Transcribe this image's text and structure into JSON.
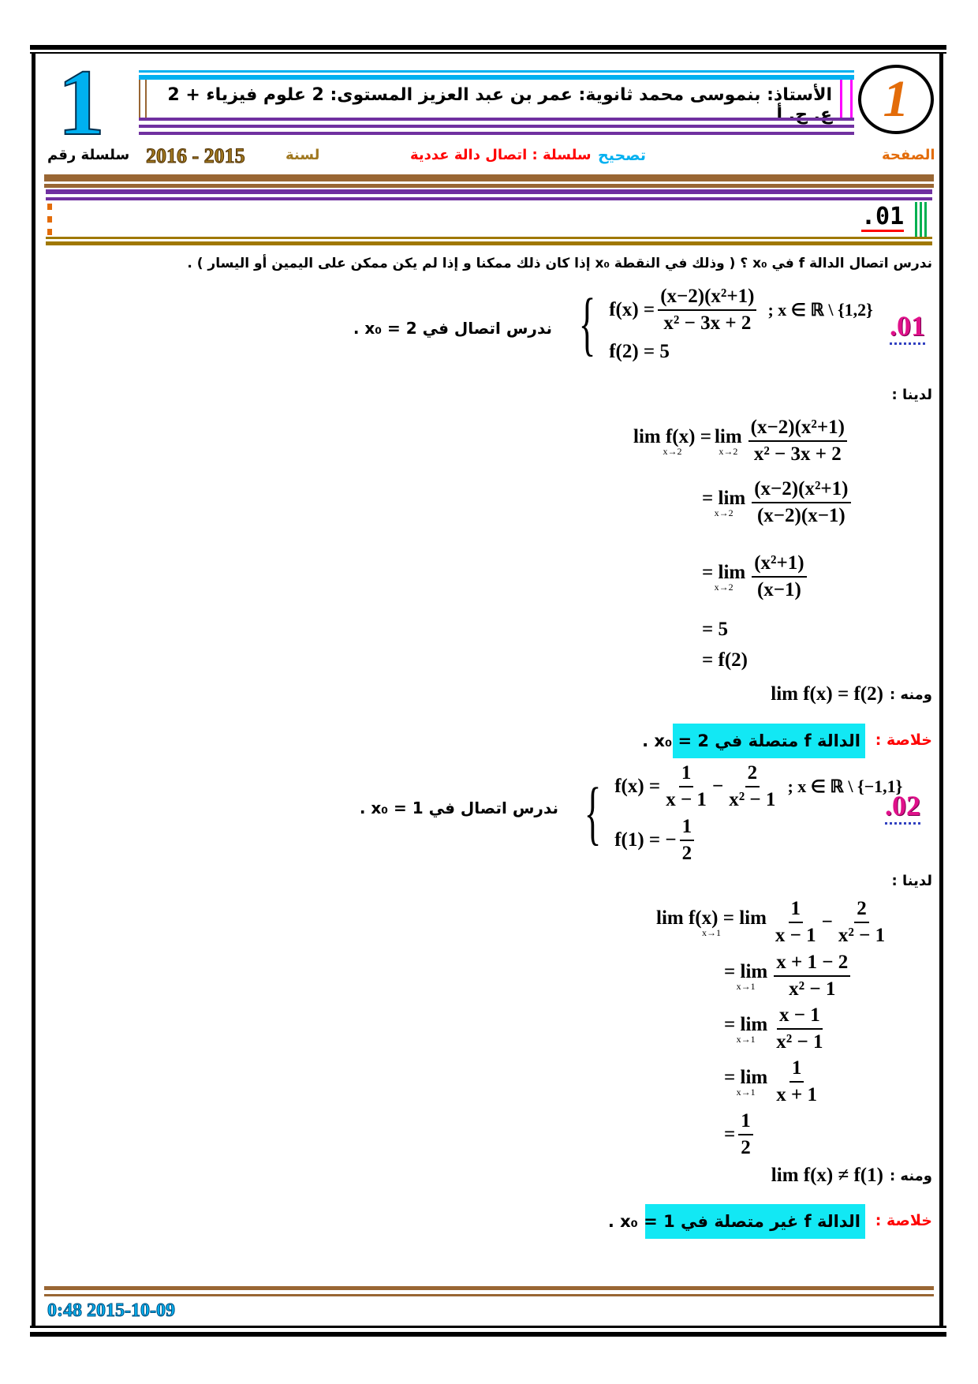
{
  "header": {
    "teacher_line": "الأستاذ: بنموسى محمد ثانوية: عمر بن عبد العزيز المستوى: 2 علوم فيزياء + 2 ع. ح. أ",
    "series_number": "1",
    "series_label": "سلسلة رقم",
    "year": "2016 - 2015",
    "year_label": "لسنة",
    "correction": "تصحيح",
    "series_title": "سلسلة : اتصال دالة عددية",
    "page_label": "الصفحة",
    "logo_glyph": "1",
    "section": ".01"
  },
  "intro": "ندرس اتصال الدالة f في x₀ ؟ ( وذلك في النقطة x₀ إذا كان ذلك ممكنا و إذا لم يكن ممكن على اليمين أو اليسار ) .",
  "ex1": {
    "num": ".01",
    "f_lhs": "f(x) =",
    "f_num": "(x−2)(x²+1)",
    "f_den": "x² − 3x + 2",
    "domain": "; x ∈ ℝ \\ {1,2}",
    "f_val": "f(2) = 5",
    "task": "ندرس اتصال في 2 = x₀ .",
    "we_have": "لدينا :",
    "s1_lhs": "lim f(x) =",
    "lim_sub": "x→2",
    "s1_lim": "lim",
    "s1_num": "(x−2)(x²+1)",
    "s1_den": "x² − 3x + 2",
    "s2_lim": "= lim",
    "s2_num": "(x−2)(x²+1)",
    "s2_den": "(x−2)(x−1)",
    "s3_lim": "= lim",
    "s3_num": "(x²+1)",
    "s3_den": "(x−1)",
    "s4": "= 5",
    "s5": "= f(2)",
    "hence": "ومنه :",
    "hence_expr": "lim f(x) = f(2)",
    "concl_label": "خلاصة :",
    "concl_text": "الدالة f متصلة في 2 = x₀ ."
  },
  "ex2": {
    "num": ".02",
    "f_lhs": "f(x) =",
    "a_num": "1",
    "a_den": "x − 1",
    "b_num": "2",
    "b_den": "x² − 1",
    "domain": "; x ∈ ℝ \\ {−1,1}",
    "f_val_lhs": "f(1) = −",
    "f_val_num": "1",
    "f_val_den": "2",
    "task": "ندرس اتصال في 1 = x₀ .",
    "we_have": "لدينا :",
    "lim_sub": "x→1",
    "s1_lhs": "lim f(x) = lim",
    "s1_an": "1",
    "s1_ad": "x − 1",
    "s1_bn": "2",
    "s1_bd": "x² − 1",
    "s2_lim": "= lim",
    "s2_num": "x + 1 − 2",
    "s2_den": "x² − 1",
    "s3_lim": "= lim",
    "s3_num": "x − 1",
    "s3_den": "x² − 1",
    "s4_lim": "= lim",
    "s4_num": "1",
    "s4_den": "x + 1",
    "s5_eq": "=",
    "s5_num": "1",
    "s5_den": "2",
    "hence": "ومنه :",
    "hence_expr": "lim f(x) ≠ f(1)",
    "concl_label": "خلاصة :",
    "concl_text": "الدالة f غير متصلة في 1 = x₀ ."
  },
  "footer": {
    "timestamp": "0:48 2015-10-09"
  },
  "colors": {
    "cyan": "#12e8f4",
    "purple": "#7030a0",
    "brown": "#996633",
    "red": "#ff0000",
    "blue": "#00b0f0",
    "orange": "#e36c09"
  }
}
